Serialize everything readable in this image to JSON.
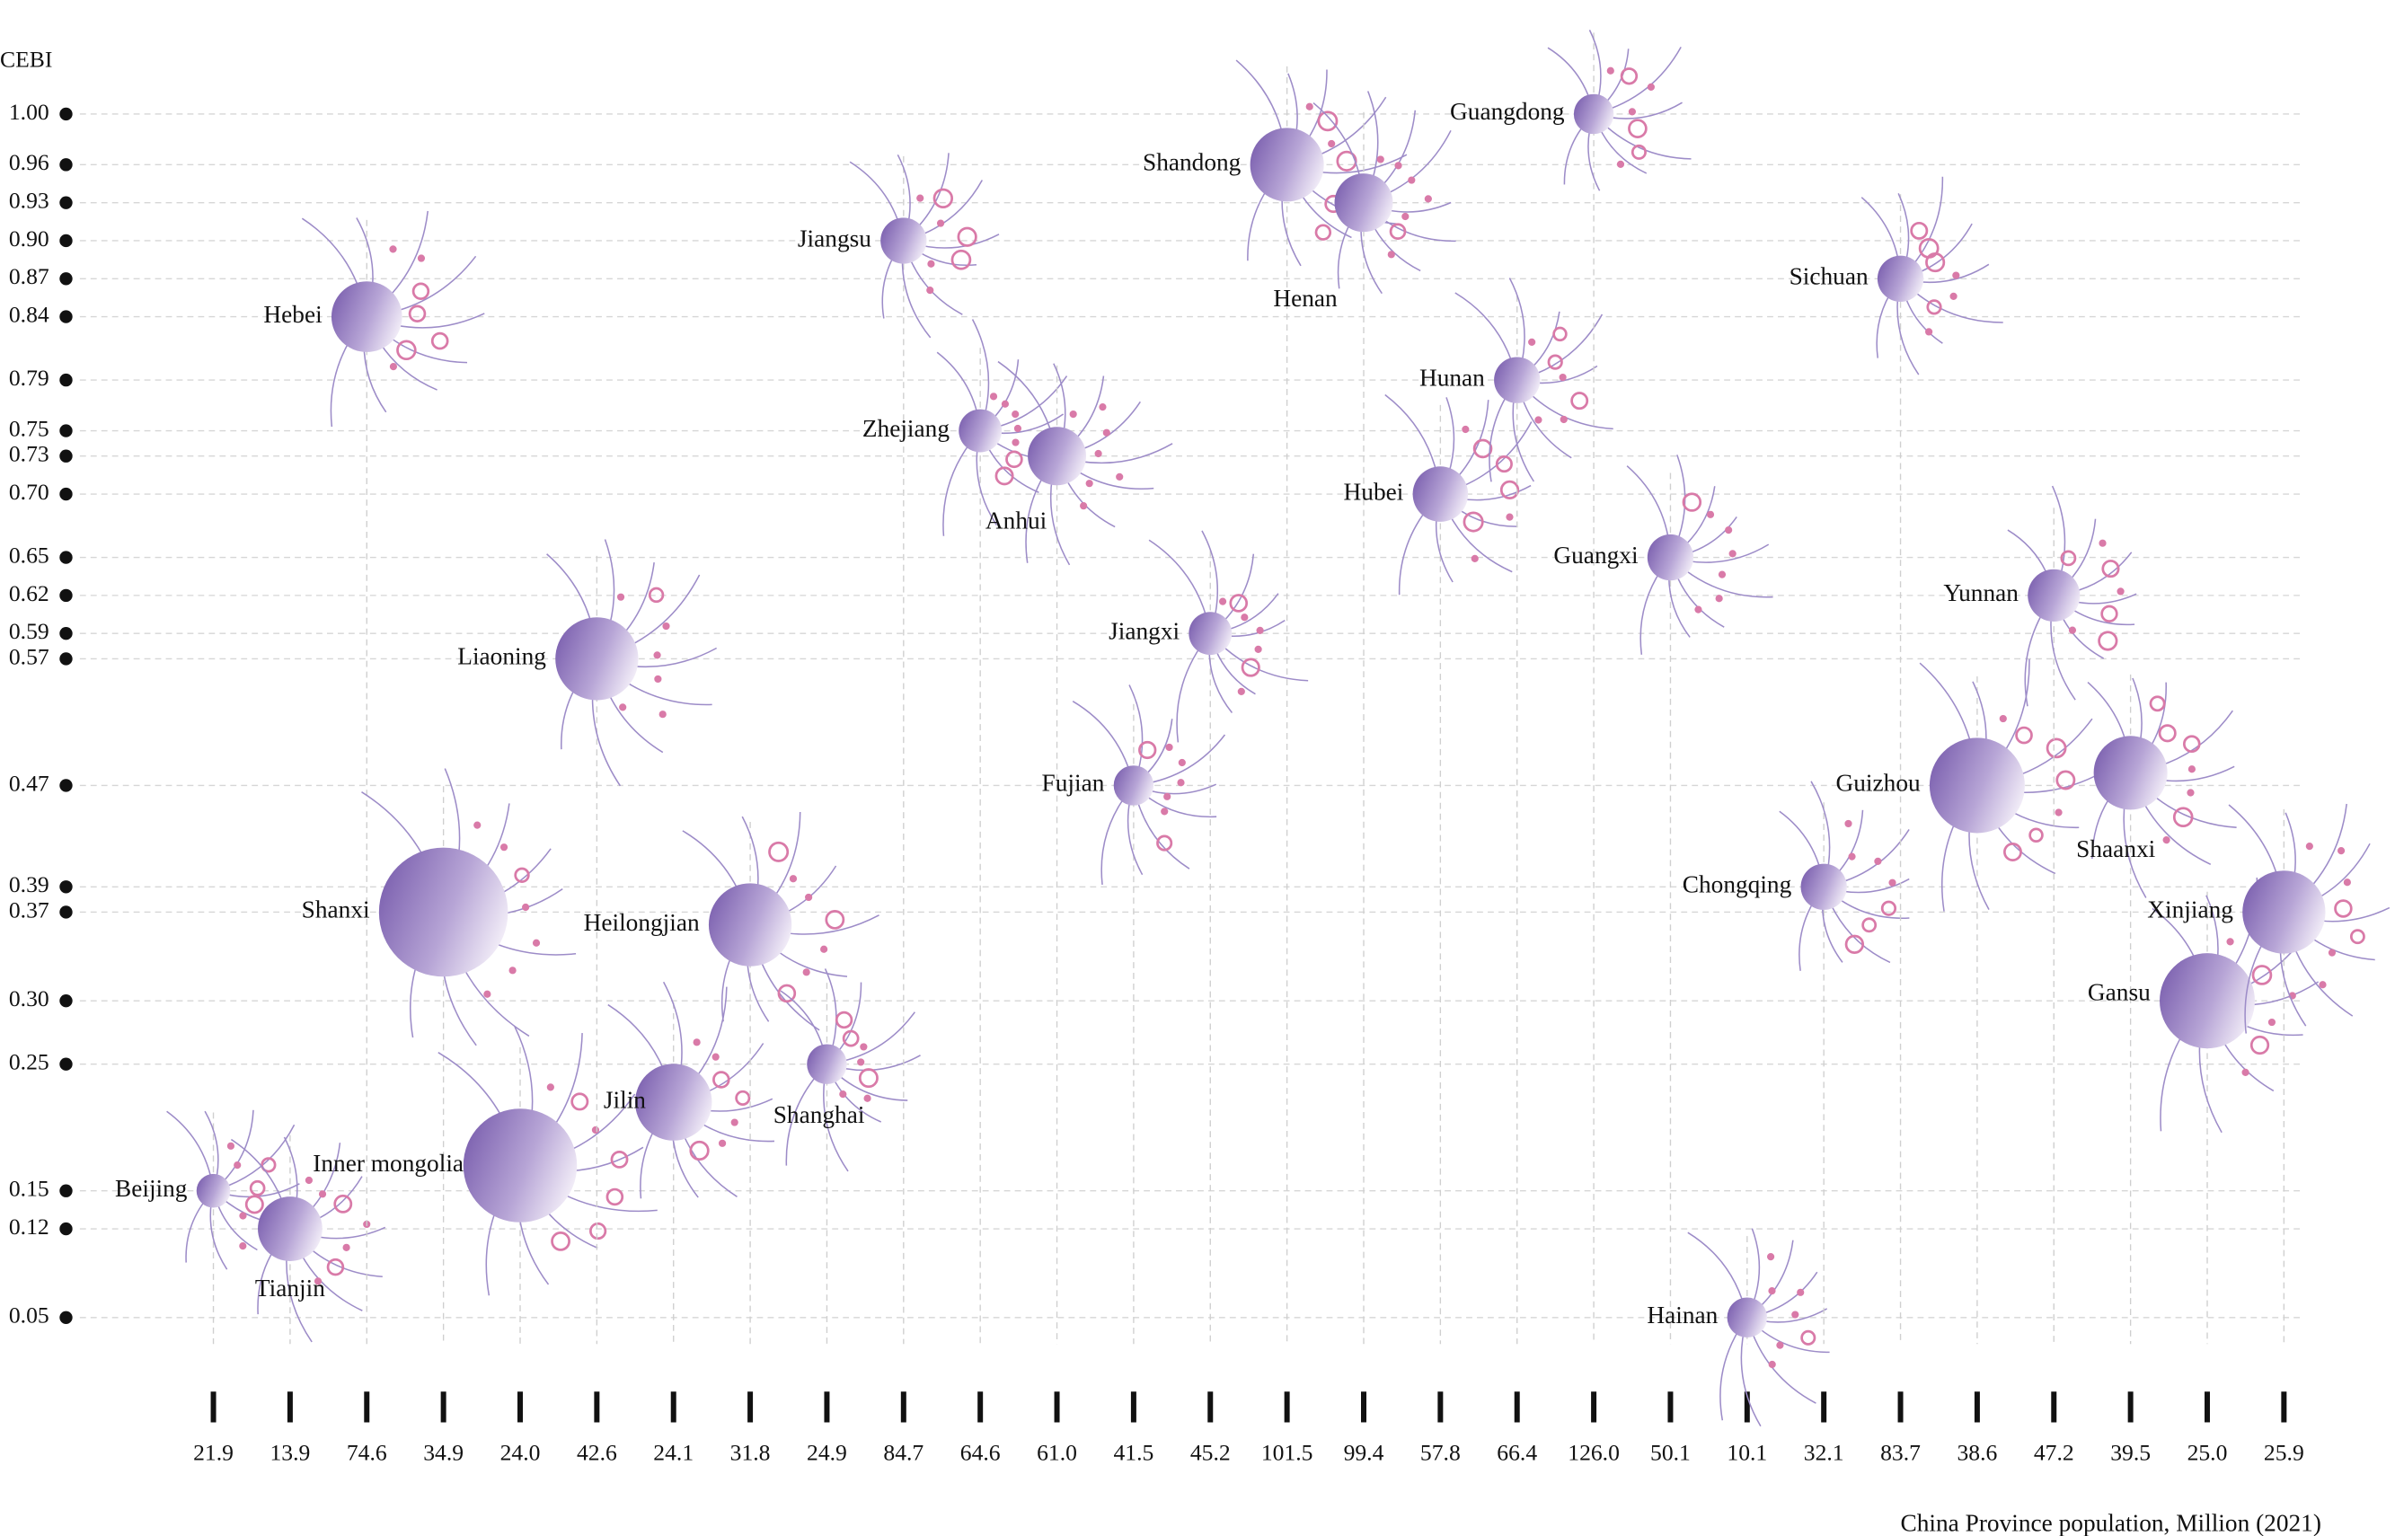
{
  "chart_data": {
    "type": "scatter",
    "y_label": "CEBI",
    "x_label": "China Province population, Million (2021)",
    "categories": [
      "21.9",
      "13.9",
      "74.6",
      "34.9",
      "24.0",
      "42.6",
      "24.1",
      "31.8",
      "24.9",
      "84.7",
      "64.6",
      "61.0",
      "41.5",
      "45.2",
      "101.5",
      "99.4",
      "57.8",
      "66.4",
      "126.0",
      "50.1",
      "10.1",
      "32.1",
      "83.7",
      "38.6",
      "47.2",
      "39.5",
      "25.0",
      "25.9"
    ],
    "labels": [
      "Beijing",
      "Tianjin",
      "Hebei",
      "Shanxi",
      "Inner mongolia",
      "Liaoning",
      "Jilin",
      "Heilongjian",
      "Shanghai",
      "Jiangsu",
      "Zhejiang",
      "Anhui",
      "Fujian",
      "Jiangxi",
      "Shandong",
      "Henan",
      "Hubei",
      "Hunan",
      "Guangdong",
      "Guangxi",
      "Hainan",
      "Chongqing",
      "Sichuan",
      "Guizhou",
      "Yunnan",
      "Shaanxi",
      "Gansu",
      "Xinjiang"
    ],
    "values": [
      0.15,
      0.12,
      0.84,
      0.37,
      0.17,
      0.57,
      0.22,
      0.36,
      0.25,
      0.9,
      0.75,
      0.73,
      0.47,
      0.59,
      0.96,
      0.93,
      0.7,
      0.79,
      1.0,
      0.65,
      0.05,
      0.39,
      0.87,
      0.47,
      0.62,
      0.48,
      0.3,
      0.37
    ],
    "sizes": [
      11,
      21,
      23,
      42,
      37,
      27,
      25,
      27,
      13,
      15,
      14,
      19,
      13,
      14,
      24,
      19,
      18,
      15,
      13,
      15,
      13,
      15,
      15,
      31,
      17,
      24,
      31,
      27
    ],
    "ylim": [
      0,
      1.05
    ],
    "yticks": [
      {
        "value": 1,
        "label": "1.00"
      },
      0.96,
      0.93,
      {
        "value": 0.9,
        "label": "0.90"
      },
      0.87,
      0.84,
      0.79,
      0.75,
      0.73,
      {
        "value": 0.7,
        "label": "0.70"
      },
      0.65,
      0.62,
      0.59,
      0.57,
      0.47,
      0.39,
      0.37,
      {
        "value": 0.3,
        "label": "0.30"
      },
      0.25,
      0.15,
      0.12,
      0.05
    ],
    "color": "#7d62b0",
    "accent": "#d97aa8"
  }
}
